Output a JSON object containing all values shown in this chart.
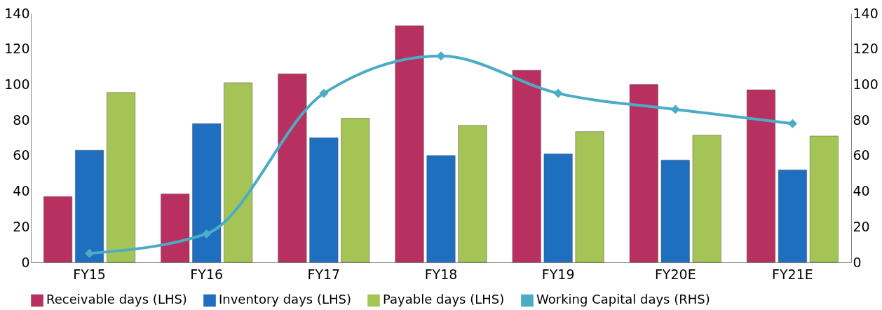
{
  "chart_data": {
    "type": "bar",
    "categories": [
      "FY15",
      "FY16",
      "FY17",
      "FY18",
      "FY19",
      "FY20E",
      "FY21E"
    ],
    "series": [
      {
        "name": "Receivable days (LHS)",
        "color": "#b8305f",
        "values": [
          37,
          38.5,
          106,
          133,
          108,
          100,
          97
        ]
      },
      {
        "name": "Inventory days (LHS)",
        "color": "#1f6fc0",
        "values": [
          63,
          78,
          70,
          60,
          61,
          57.5,
          52
        ]
      },
      {
        "name": "Payable days (LHS)",
        "color": "#a4c455",
        "values": [
          95.5,
          101,
          81,
          77,
          73.5,
          71.5,
          71
        ]
      },
      {
        "name": "Working Capital days (RHS)",
        "type": "line",
        "axis": "y2",
        "color": "#4bacc6",
        "values": [
          5,
          16,
          95,
          116,
          95,
          86,
          78
        ]
      }
    ],
    "ylim": [
      0,
      140
    ],
    "yticks": [
      0,
      20,
      40,
      60,
      80,
      100,
      120,
      140
    ],
    "y2lim": [
      0,
      140
    ],
    "y2ticks": [
      0,
      20,
      40,
      60,
      80,
      100,
      120,
      140
    ],
    "legend": "bottom",
    "marker": "diamond"
  }
}
